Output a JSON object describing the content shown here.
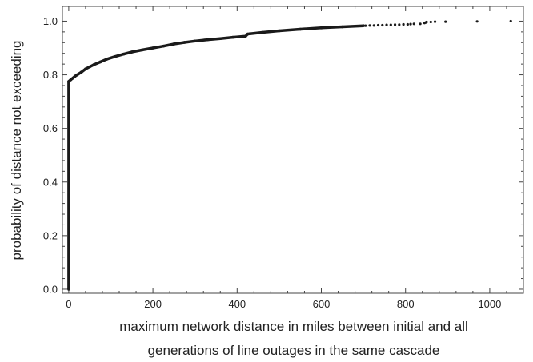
{
  "chart_data": {
    "type": "line",
    "title": "",
    "xlabel": "maximum network distance in miles between initial and all generations of line outages in the same cascade",
    "xlabel_lines": [
      "maximum network distance in miles between initial and all",
      "generations of line outages in the same cascade"
    ],
    "ylabel": "probability of distance not exceeding",
    "xlim": [
      -15,
      1080
    ],
    "ylim": [
      -0.015,
      1.055
    ],
    "x_ticks": [
      0,
      200,
      400,
      600,
      800,
      1000
    ],
    "x_tick_labels": [
      "0",
      "200",
      "400",
      "600",
      "800",
      "1000"
    ],
    "y_ticks": [
      0.0,
      0.2,
      0.4,
      0.6,
      0.8,
      1.0
    ],
    "y_tick_labels": [
      "0.0",
      "0.2",
      "0.4",
      "0.6",
      "0.8",
      "1.0"
    ],
    "grid": false,
    "legend": "none",
    "series": [
      {
        "color": "#1a1a1a",
        "x": [
          0,
          0,
          5,
          10,
          15,
          20,
          30,
          40,
          50,
          60,
          75,
          90,
          110,
          130,
          150,
          175,
          200,
          225,
          250,
          275,
          300,
          330,
          360,
          390,
          420,
          425,
          430,
          460,
          500,
          550,
          600,
          650,
          700
        ],
        "y": [
          0.0,
          0.775,
          0.782,
          0.788,
          0.795,
          0.8,
          0.81,
          0.822,
          0.83,
          0.838,
          0.848,
          0.858,
          0.868,
          0.877,
          0.885,
          0.893,
          0.9,
          0.907,
          0.915,
          0.921,
          0.926,
          0.931,
          0.935,
          0.94,
          0.944,
          0.952,
          0.953,
          0.958,
          0.964,
          0.97,
          0.975,
          0.979,
          0.983
        ]
      }
    ],
    "tail_points": {
      "x": [
        705,
        715,
        725,
        735,
        745,
        755,
        765,
        775,
        785,
        795,
        805,
        812,
        820,
        835,
        845,
        848,
        850,
        860,
        870,
        895,
        970,
        1050
      ],
      "y": [
        0.983,
        0.984,
        0.984,
        0.985,
        0.985,
        0.986,
        0.986,
        0.987,
        0.987,
        0.988,
        0.988,
        0.989,
        0.99,
        0.99,
        0.993,
        0.995,
        0.997,
        0.997,
        0.998,
        0.998,
        0.999,
        1.0
      ]
    }
  }
}
